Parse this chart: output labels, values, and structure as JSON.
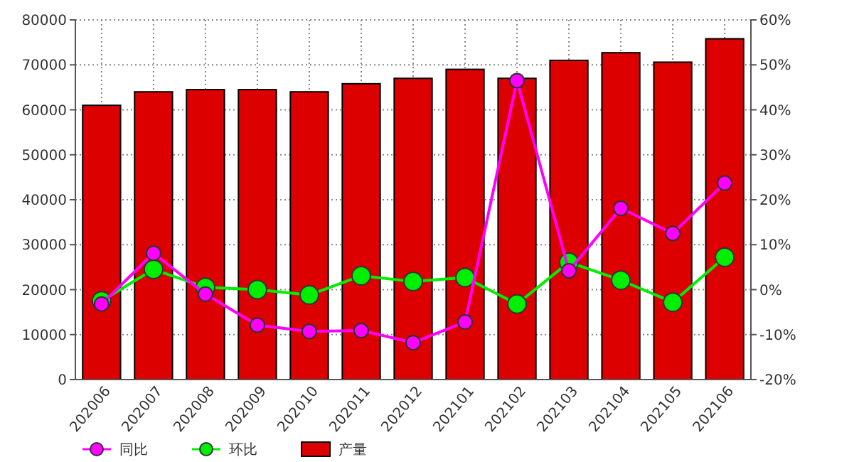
{
  "chart_data": {
    "type": "bar",
    "categories": [
      "202006",
      "202007",
      "202008",
      "202009",
      "202010",
      "202011",
      "202012",
      "202101",
      "202102",
      "202103",
      "202104",
      "202105",
      "202106"
    ],
    "series": [
      {
        "name": "同比",
        "type": "line",
        "axis": "y2",
        "color": "#ff00ff",
        "values": [
          -3.2,
          8.1,
          -1,
          -7.9,
          -9.3,
          -9.1,
          -11.8,
          -7.2,
          46.5,
          4.2,
          18.1,
          12.5,
          23.7
        ]
      },
      {
        "name": "环比",
        "type": "line",
        "axis": "y2",
        "color": "#00ee00",
        "values": [
          -2.5,
          4.5,
          0.5,
          0,
          -1.2,
          3.1,
          1.8,
          2.7,
          -3.2,
          6.1,
          2.1,
          -2.8,
          7.2
        ]
      },
      {
        "name": "产量",
        "color": "#dd0000",
        "values": [
          61000,
          64000,
          64500,
          64500,
          64000,
          65800,
          67000,
          69000,
          67000,
          71000,
          72700,
          70600,
          75800
        ]
      }
    ],
    "ylim": [
      0,
      80000
    ],
    "yticks": [
      0,
      10000,
      20000,
      30000,
      40000,
      50000,
      60000,
      70000,
      80000
    ],
    "y2lim": [
      -20,
      60
    ],
    "y2ticks": [
      {
        "value": -20,
        "label": "-20%"
      },
      {
        "value": -10,
        "label": "-10%"
      },
      {
        "value": 0,
        "label": "0%"
      },
      {
        "value": 10,
        "label": "10%"
      },
      {
        "value": 20,
        "label": "20%"
      },
      {
        "value": 30,
        "label": "30%"
      },
      {
        "value": 40,
        "label": "40%"
      },
      {
        "value": 50,
        "label": "50%"
      },
      {
        "value": 60,
        "label": "60%"
      }
    ],
    "grid": true,
    "legend": "bottom left",
    "marker": "circle",
    "line_style": "solid"
  }
}
